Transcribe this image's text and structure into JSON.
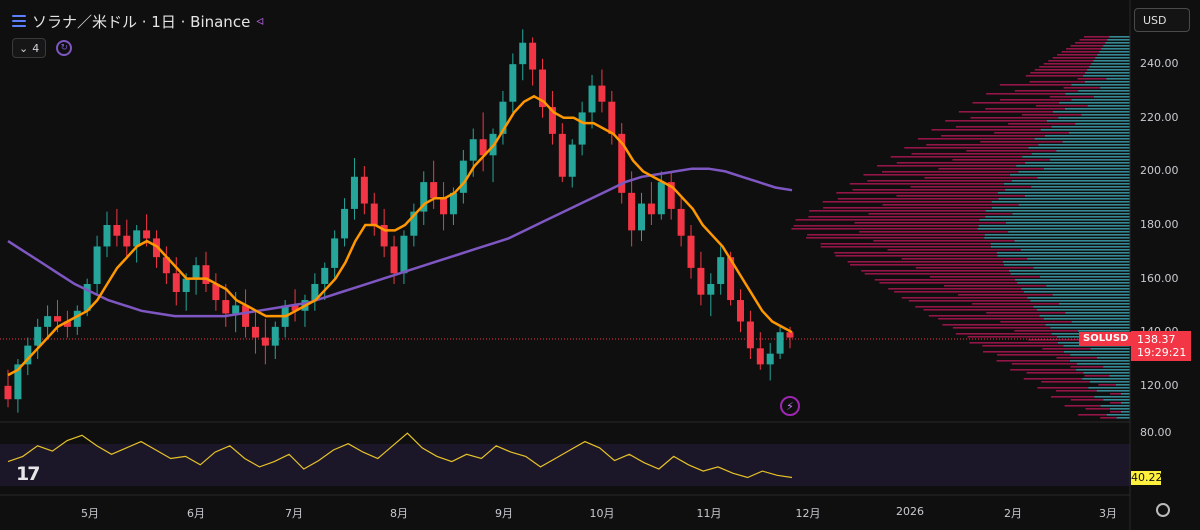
{
  "header": {
    "title": "ソラナ／米ドル · 1日 · Binance",
    "menu_icon": "menu-icon",
    "share_icon": "share-icon"
  },
  "indicator_badge": {
    "count": "4",
    "chevron_icon": "chevron-down-icon",
    "sync_icon": "sync-icon"
  },
  "currency": "USD",
  "last_price": {
    "symbol": "SOLUSD",
    "price": "138.37",
    "countdown": "19:29:21"
  },
  "oscillator": {
    "value": "40.22",
    "upper_level": "80.00"
  },
  "price_axis_labels": [
    "240.00",
    "220.00",
    "200.00",
    "180.00",
    "160.00",
    "140.00",
    "120.00"
  ],
  "time_axis_labels": [
    "5月",
    "6月",
    "7月",
    "8月",
    "9月",
    "10月",
    "11月",
    "12月",
    "2026",
    "2月",
    "3月"
  ],
  "colors": {
    "up": "#26a69a",
    "down": "#f23645",
    "ma_short": "#ff9800",
    "ma_long": "#7e57c2",
    "oscillator": "#e6c229",
    "vp_up": "#3fa7b5",
    "vp_down": "#c2185b"
  },
  "chart_data": {
    "type": "candlestick",
    "ylim": [
      108,
      252
    ],
    "candles": [
      [
        120,
        126,
        112,
        115
      ],
      [
        115,
        130,
        110,
        128
      ],
      [
        128,
        138,
        124,
        135
      ],
      [
        135,
        145,
        130,
        142
      ],
      [
        142,
        150,
        138,
        146
      ],
      [
        146,
        152,
        140,
        144
      ],
      [
        144,
        148,
        138,
        142
      ],
      [
        142,
        150,
        139,
        148
      ],
      [
        148,
        160,
        146,
        158
      ],
      [
        158,
        176,
        154,
        172
      ],
      [
        172,
        185,
        168,
        180
      ],
      [
        180,
        186,
        172,
        176
      ],
      [
        176,
        182,
        168,
        172
      ],
      [
        172,
        180,
        166,
        178
      ],
      [
        178,
        184,
        172,
        175
      ],
      [
        175,
        178,
        164,
        168
      ],
      [
        168,
        172,
        158,
        162
      ],
      [
        162,
        168,
        150,
        155
      ],
      [
        155,
        162,
        148,
        160
      ],
      [
        160,
        168,
        154,
        165
      ],
      [
        165,
        170,
        155,
        158
      ],
      [
        158,
        162,
        148,
        152
      ],
      [
        152,
        158,
        142,
        147
      ],
      [
        147,
        155,
        140,
        150
      ],
      [
        150,
        156,
        138,
        142
      ],
      [
        142,
        148,
        132,
        138
      ],
      [
        138,
        145,
        128,
        135
      ],
      [
        135,
        144,
        130,
        142
      ],
      [
        142,
        152,
        138,
        150
      ],
      [
        150,
        156,
        144,
        148
      ],
      [
        148,
        154,
        142,
        152
      ],
      [
        152,
        162,
        148,
        158
      ],
      [
        158,
        166,
        152,
        164
      ],
      [
        164,
        178,
        160,
        175
      ],
      [
        175,
        190,
        172,
        186
      ],
      [
        186,
        205,
        182,
        198
      ],
      [
        198,
        202,
        184,
        188
      ],
      [
        188,
        192,
        176,
        180
      ],
      [
        180,
        186,
        168,
        172
      ],
      [
        172,
        176,
        158,
        162
      ],
      [
        162,
        178,
        158,
        176
      ],
      [
        176,
        188,
        172,
        185
      ],
      [
        185,
        200,
        180,
        196
      ],
      [
        196,
        204,
        186,
        190
      ],
      [
        190,
        196,
        178,
        184
      ],
      [
        184,
        194,
        180,
        192
      ],
      [
        192,
        208,
        188,
        204
      ],
      [
        204,
        216,
        198,
        212
      ],
      [
        212,
        222,
        200,
        206
      ],
      [
        206,
        216,
        196,
        214
      ],
      [
        214,
        230,
        210,
        226
      ],
      [
        226,
        244,
        222,
        240
      ],
      [
        240,
        253,
        234,
        248
      ],
      [
        248,
        250,
        232,
        238
      ],
      [
        238,
        242,
        220,
        224
      ],
      [
        224,
        230,
        210,
        214
      ],
      [
        214,
        218,
        196,
        198
      ],
      [
        198,
        212,
        194,
        210
      ],
      [
        210,
        226,
        206,
        222
      ],
      [
        222,
        236,
        216,
        232
      ],
      [
        232,
        238,
        222,
        226
      ],
      [
        226,
        230,
        210,
        214
      ],
      [
        214,
        218,
        188,
        192
      ],
      [
        192,
        200,
        172,
        178
      ],
      [
        178,
        192,
        174,
        188
      ],
      [
        188,
        196,
        180,
        184
      ],
      [
        184,
        200,
        182,
        196
      ],
      [
        196,
        200,
        182,
        186
      ],
      [
        186,
        190,
        172,
        176
      ],
      [
        176,
        180,
        160,
        164
      ],
      [
        164,
        170,
        150,
        154
      ],
      [
        154,
        162,
        146,
        158
      ],
      [
        158,
        172,
        154,
        168
      ],
      [
        168,
        170,
        150,
        152
      ],
      [
        152,
        156,
        140,
        144
      ],
      [
        144,
        148,
        130,
        134
      ],
      [
        134,
        140,
        126,
        128
      ],
      [
        128,
        136,
        122,
        132
      ],
      [
        132,
        142,
        130,
        140
      ],
      [
        140,
        142,
        134,
        138
      ]
    ],
    "ma_short": [
      124,
      126,
      130,
      134,
      138,
      142,
      144,
      146,
      148,
      152,
      158,
      164,
      168,
      172,
      174,
      172,
      168,
      164,
      160,
      160,
      160,
      158,
      156,
      152,
      150,
      148,
      146,
      146,
      146,
      148,
      150,
      152,
      156,
      160,
      166,
      174,
      180,
      180,
      178,
      178,
      180,
      184,
      188,
      190,
      190,
      192,
      196,
      202,
      206,
      210,
      216,
      222,
      226,
      228,
      226,
      222,
      220,
      220,
      218,
      218,
      216,
      214,
      210,
      204,
      200,
      198,
      196,
      194,
      190,
      186,
      180,
      176,
      172,
      166,
      160,
      154,
      148,
      144,
      142,
      140
    ],
    "ma_long": [
      174,
      170,
      166,
      162,
      158,
      155,
      152,
      150,
      148,
      147,
      146,
      146,
      146,
      146,
      147,
      148,
      149,
      150,
      151,
      153,
      155,
      157,
      159,
      161,
      163,
      165,
      167,
      169,
      171,
      173,
      175,
      178,
      181,
      184,
      187,
      190,
      193,
      196,
      198,
      199,
      200,
      201,
      201,
      200,
      198,
      196,
      194,
      193
    ],
    "oscillator": [
      55,
      60,
      70,
      65,
      75,
      80,
      70,
      62,
      68,
      74,
      66,
      58,
      60,
      52,
      64,
      70,
      58,
      50,
      55,
      62,
      48,
      56,
      66,
      72,
      64,
      58,
      70,
      82,
      68,
      60,
      55,
      62,
      58,
      70,
      64,
      60,
      50,
      58,
      66,
      74,
      68,
      56,
      62,
      54,
      48,
      60,
      52,
      46,
      50,
      44,
      40,
      46,
      42,
      40
    ]
  }
}
